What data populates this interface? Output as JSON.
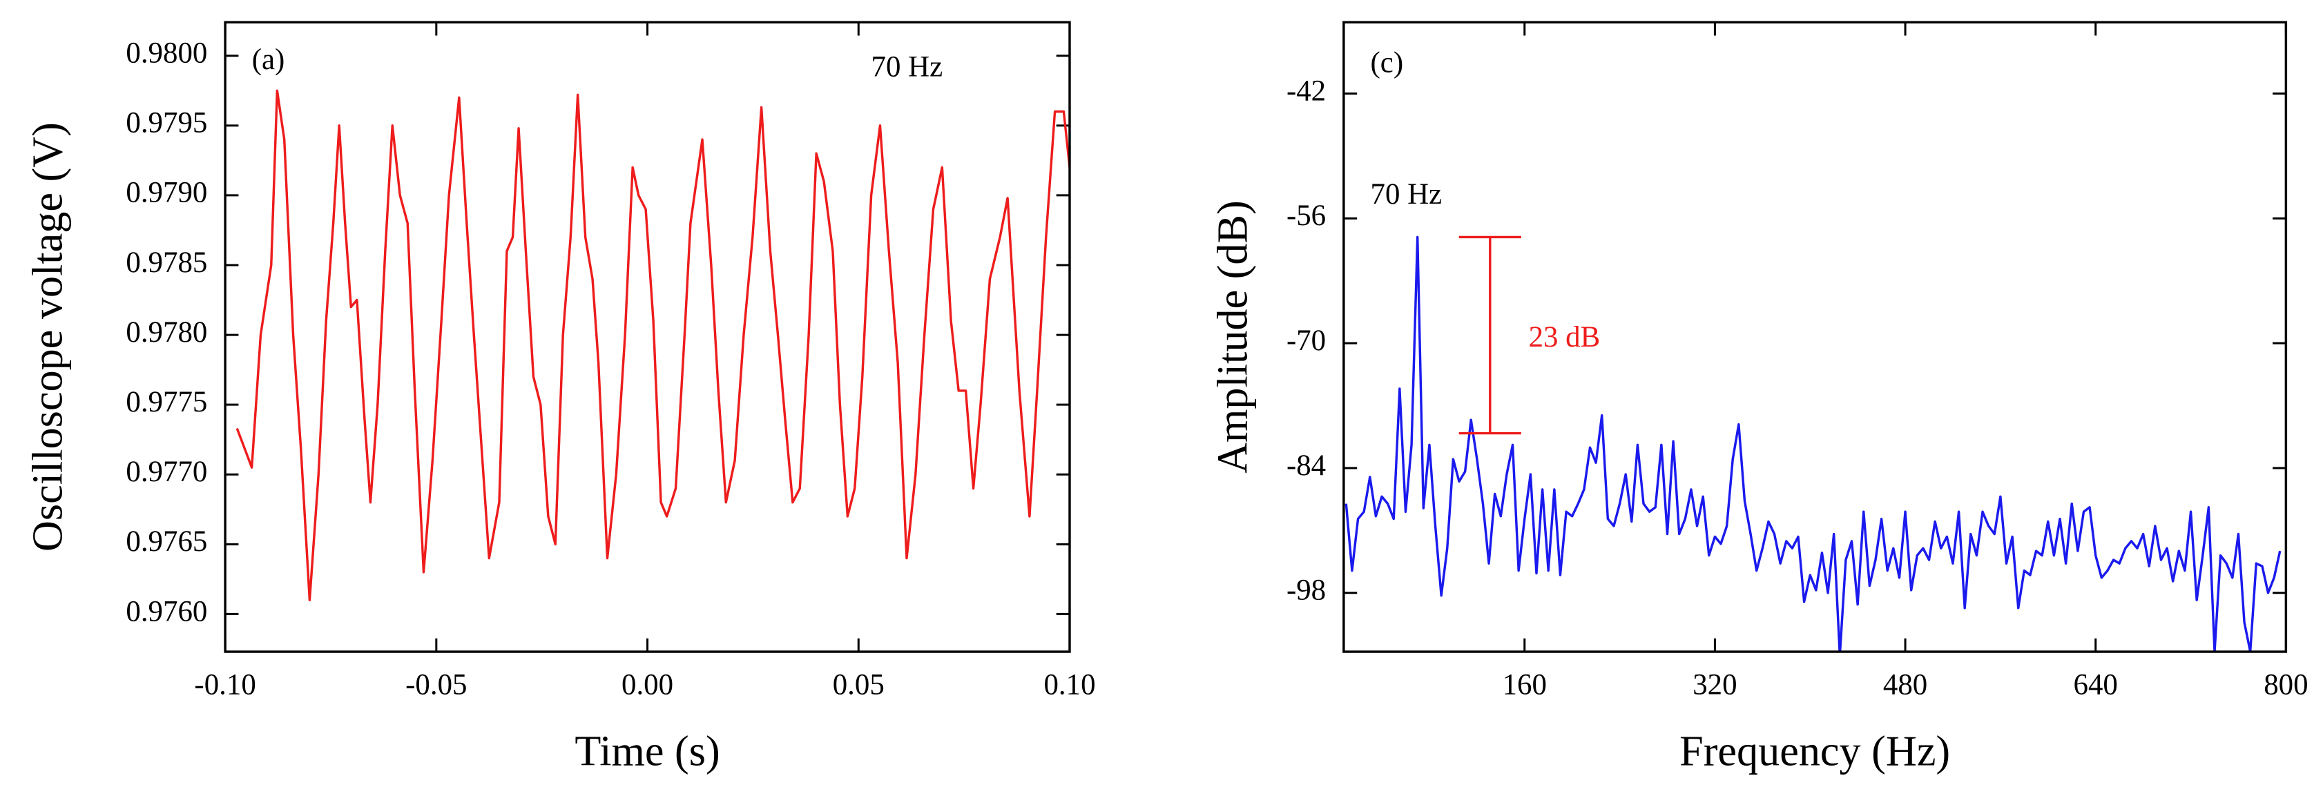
{
  "chart_data": [
    {
      "type": "line",
      "xlabel": "Time (s)",
      "ylabel": "Oscilloscope voltage (V)",
      "annotations": [
        "(a)",
        "70 Hz"
      ],
      "color": "#ee1c1c",
      "xlim": [
        -0.1,
        0.1
      ],
      "ylim": [
        0.97573,
        0.98024
      ],
      "xticks": [
        {
          "value": -0.1,
          "label": "-0.10"
        },
        -0.05,
        {
          "value": 0,
          "label": "0.00"
        },
        0.05,
        {
          "value": 0.1,
          "label": "0.10"
        }
      ],
      "yticks": [
        {
          "value": 0.976,
          "label": "0.9760"
        },
        0.9765,
        {
          "value": 0.977,
          "label": "0.9770"
        },
        0.9775,
        {
          "value": 0.978,
          "label": "0.9780"
        },
        0.9785,
        {
          "value": 0.979,
          "label": "0.9790"
        },
        0.9795,
        {
          "value": 0.98,
          "label": "0.9800"
        }
      ],
      "x": [
        -0.0972,
        -0.0937,
        -0.0916,
        -0.0891,
        -0.0877,
        -0.086,
        -0.0839,
        -0.0821,
        -0.08,
        -0.0779,
        -0.0761,
        -0.0744,
        -0.073,
        -0.0716,
        -0.0702,
        -0.0688,
        -0.067,
        -0.0656,
        -0.0639,
        -0.0621,
        -0.0604,
        -0.0586,
        -0.0568,
        -0.0551,
        -0.053,
        -0.0509,
        -0.0488,
        -0.047,
        -0.0446,
        -0.0428,
        -0.0411,
        -0.0393,
        -0.0375,
        -0.0351,
        -0.0333,
        -0.0319,
        -0.0305,
        -0.0288,
        -0.027,
        -0.0253,
        -0.0235,
        -0.0218,
        -0.02,
        -0.0182,
        -0.0165,
        -0.0147,
        -0.013,
        -0.0116,
        -0.0095,
        -0.0074,
        -0.0053,
        -0.0035,
        -0.0021,
        -0.0004,
        0.0014,
        0.0032,
        0.0046,
        0.0067,
        0.0088,
        0.0102,
        0.013,
        0.0151,
        0.0168,
        0.0186,
        0.0207,
        0.0228,
        0.0249,
        0.027,
        0.0291,
        0.0309,
        0.0326,
        0.0344,
        0.0361,
        0.0382,
        0.04,
        0.0418,
        0.0439,
        0.0456,
        0.0474,
        0.0491,
        0.0509,
        0.053,
        0.0551,
        0.0572,
        0.0593,
        0.0614,
        0.0635,
        0.0656,
        0.0677,
        0.0698,
        0.0719,
        0.0737,
        0.0754,
        0.0772,
        0.0789,
        0.0811,
        0.0835,
        0.0853,
        0.0881,
        0.0905,
        0.0923,
        0.0944,
        0.0965,
        0.0986,
        0.1
      ],
      "values": [
        0.97733,
        0.97705,
        0.978,
        0.9785,
        0.97975,
        0.9794,
        0.978,
        0.9772,
        0.9761,
        0.977,
        0.9781,
        0.9788,
        0.9795,
        0.9788,
        0.9782,
        0.97825,
        0.9774,
        0.9768,
        0.9775,
        0.9786,
        0.9795,
        0.979,
        0.9788,
        0.9776,
        0.9763,
        0.9771,
        0.9781,
        0.979,
        0.9797,
        0.9788,
        0.978,
        0.9772,
        0.9764,
        0.9768,
        0.9786,
        0.9787,
        0.97948,
        0.9786,
        0.9777,
        0.9775,
        0.9767,
        0.9765,
        0.978,
        0.9787,
        0.97972,
        0.9787,
        0.9784,
        0.9778,
        0.9764,
        0.977,
        0.978,
        0.9792,
        0.979,
        0.9789,
        0.9781,
        0.9768,
        0.9767,
        0.9769,
        0.978,
        0.9788,
        0.9794,
        0.9785,
        0.9776,
        0.9768,
        0.9771,
        0.978,
        0.9787,
        0.97963,
        0.9786,
        0.978,
        0.9774,
        0.9768,
        0.9769,
        0.978,
        0.9793,
        0.9791,
        0.9786,
        0.9775,
        0.9767,
        0.9769,
        0.9777,
        0.979,
        0.9795,
        0.9786,
        0.9778,
        0.9764,
        0.977,
        0.978,
        0.9789,
        0.9792,
        0.9781,
        0.9776,
        0.9776,
        0.9769,
        0.9775,
        0.9784,
        0.9787,
        0.97898,
        0.9776,
        0.9767,
        0.9776,
        0.9787,
        0.9796,
        0.9796,
        0.9792
      ]
    },
    {
      "type": "line",
      "xlabel": "Frequency (Hz)",
      "ylabel": "Amplitude (dB)",
      "annotations": [
        "(c)",
        "70 Hz"
      ],
      "color": "#1a1aee",
      "marker": {
        "x": 131,
        "y1": -58.1,
        "y2": -80.1,
        "label": "23 dB",
        "color": "#ee1c1c"
      },
      "xlim": [
        8,
        800
      ],
      "ylim": [
        -104.6,
        -34
      ],
      "xticks": [
        160,
        320,
        480,
        640,
        800
      ],
      "yticks": [
        -98,
        -84,
        -70,
        -56,
        -42
      ],
      "x": [
        10,
        15,
        20,
        25,
        30,
        35,
        40,
        45,
        50,
        55,
        60,
        65,
        70,
        75,
        80,
        85,
        90,
        95,
        100,
        105,
        110,
        115,
        120,
        125,
        130,
        135,
        140,
        145,
        150,
        155,
        160,
        165,
        170,
        175,
        180,
        185,
        190,
        195,
        200,
        205,
        210,
        215,
        220,
        225,
        230,
        235,
        240,
        245,
        250,
        255,
        260,
        265,
        270,
        275,
        280,
        285,
        290,
        295,
        300,
        305,
        310,
        315,
        320,
        325,
        330,
        335,
        340,
        345,
        350,
        355,
        360,
        365,
        370,
        375,
        380,
        385,
        390,
        395,
        400,
        405,
        410,
        415,
        420,
        425,
        430,
        435,
        440,
        445,
        450,
        455,
        460,
        465,
        470,
        475,
        480,
        485,
        490,
        495,
        500,
        505,
        510,
        515,
        520,
        525,
        530,
        535,
        540,
        545,
        550,
        555,
        560,
        565,
        570,
        575,
        580,
        585,
        590,
        595,
        600,
        605,
        610,
        615,
        620,
        625,
        630,
        635,
        640,
        645,
        650,
        655,
        660,
        665,
        670,
        675,
        680,
        685,
        690,
        695,
        700,
        705,
        710,
        715,
        720,
        725,
        730,
        735,
        740,
        745,
        750,
        755,
        760,
        765,
        770,
        775,
        780,
        785,
        790,
        795
      ],
      "values": [
        -88.0,
        -95.5,
        -89.7,
        -88.9,
        -85.0,
        -89.4,
        -87.2,
        -88.0,
        -89.7,
        -75.1,
        -88.9,
        -81.4,
        -58.1,
        -88.5,
        -81.4,
        -90.5,
        -98.3,
        -93.0,
        -83.0,
        -85.5,
        -84.4,
        -78.6,
        -83.0,
        -88.0,
        -94.7,
        -86.9,
        -89.4,
        -84.7,
        -81.4,
        -95.5,
        -89.7,
        -84.7,
        -95.8,
        -86.4,
        -95.5,
        -86.4,
        -96.0,
        -88.9,
        -89.4,
        -88.0,
        -86.4,
        -81.7,
        -83.4,
        -78.1,
        -89.7,
        -90.5,
        -88.0,
        -84.7,
        -90.0,
        -81.4,
        -88.0,
        -88.9,
        -88.4,
        -81.4,
        -91.4,
        -81.0,
        -91.4,
        -89.7,
        -86.4,
        -90.5,
        -87.2,
        -93.8,
        -91.7,
        -92.5,
        -90.5,
        -83.0,
        -79.1,
        -87.7,
        -91.4,
        -95.5,
        -93.0,
        -90.0,
        -91.4,
        -94.7,
        -92.2,
        -93.0,
        -91.7,
        -99.0,
        -96.0,
        -97.7,
        -93.5,
        -98.0,
        -91.4,
        -105.0,
        -94.3,
        -92.2,
        -99.3,
        -88.9,
        -97.2,
        -94.3,
        -89.7,
        -95.5,
        -93.0,
        -96.3,
        -88.9,
        -97.7,
        -93.8,
        -93.0,
        -94.3,
        -90.0,
        -93.0,
        -91.7,
        -94.7,
        -88.9,
        -99.7,
        -91.4,
        -93.8,
        -88.9,
        -90.5,
        -91.4,
        -87.2,
        -94.7,
        -91.7,
        -99.7,
        -95.5,
        -96.0,
        -93.3,
        -93.8,
        -90.0,
        -93.8,
        -89.7,
        -94.7,
        -88.0,
        -93.3,
        -88.9,
        -88.4,
        -93.8,
        -96.3,
        -95.5,
        -94.3,
        -94.7,
        -93.0,
        -92.2,
        -93.0,
        -91.4,
        -95.0,
        -90.5,
        -94.3,
        -93.0,
        -96.7,
        -93.3,
        -95.5,
        -88.9,
        -98.8,
        -93.8,
        -88.4,
        -104.6,
        -93.8,
        -94.7,
        -96.3,
        -91.4,
        -101.3,
        -104.6,
        -94.7,
        -95.0,
        -98.0,
        -96.3,
        -93.3
      ]
    }
  ]
}
